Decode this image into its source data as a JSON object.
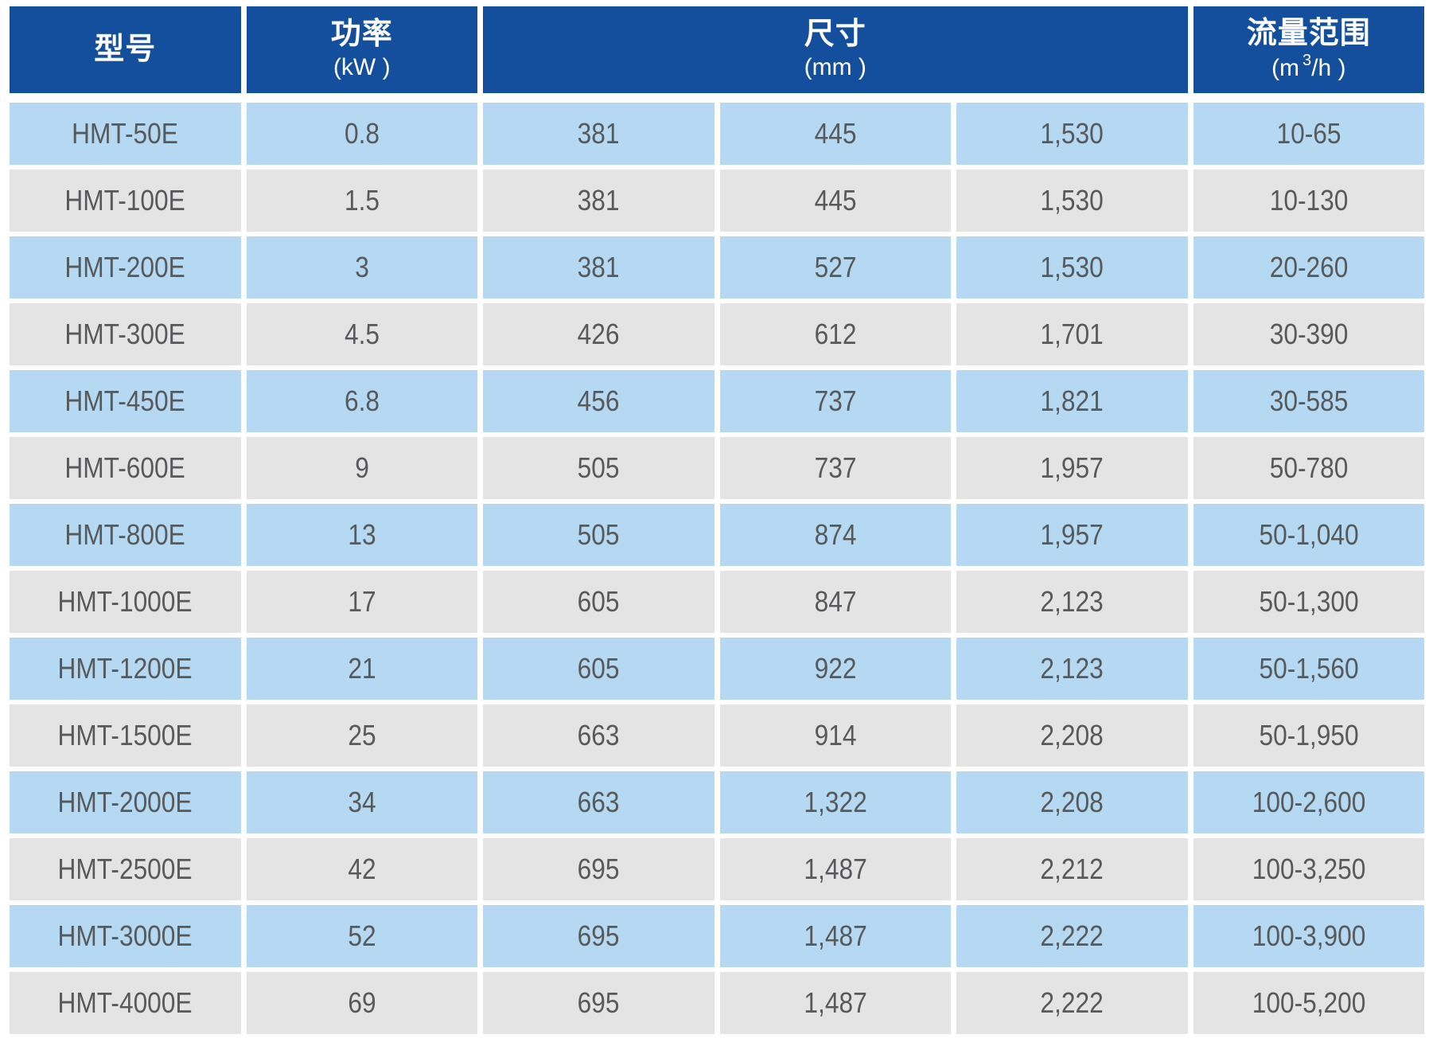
{
  "table": {
    "headers": {
      "model": "型号",
      "power_line1": "功率",
      "power_line2": "(kW )",
      "dims_line1": "尺寸",
      "dims_line2": "(mm )",
      "flow_line1": "流量范围",
      "flow_line2_prefix": "(m",
      "flow_line2_sup": "3",
      "flow_line2_suffix": "/h )"
    },
    "rows": [
      {
        "model": "HMT-50E",
        "power": "0.8",
        "dim1": "381",
        "dim2": "445",
        "dim3": "1,530",
        "flow": "10-65"
      },
      {
        "model": "HMT-100E",
        "power": "1.5",
        "dim1": "381",
        "dim2": "445",
        "dim3": "1,530",
        "flow": "10-130"
      },
      {
        "model": "HMT-200E",
        "power": "3",
        "dim1": "381",
        "dim2": "527",
        "dim3": "1,530",
        "flow": "20-260"
      },
      {
        "model": "HMT-300E",
        "power": "4.5",
        "dim1": "426",
        "dim2": "612",
        "dim3": "1,701",
        "flow": "30-390"
      },
      {
        "model": "HMT-450E",
        "power": "6.8",
        "dim1": "456",
        "dim2": "737",
        "dim3": "1,821",
        "flow": "30-585"
      },
      {
        "model": "HMT-600E",
        "power": "9",
        "dim1": "505",
        "dim2": "737",
        "dim3": "1,957",
        "flow": "50-780"
      },
      {
        "model": "HMT-800E",
        "power": "13",
        "dim1": "505",
        "dim2": "874",
        "dim3": "1,957",
        "flow": "50-1,040"
      },
      {
        "model": "HMT-1000E",
        "power": "17",
        "dim1": "605",
        "dim2": "847",
        "dim3": "2,123",
        "flow": "50-1,300"
      },
      {
        "model": "HMT-1200E",
        "power": "21",
        "dim1": "605",
        "dim2": "922",
        "dim3": "2,123",
        "flow": "50-1,560"
      },
      {
        "model": "HMT-1500E",
        "power": "25",
        "dim1": "663",
        "dim2": "914",
        "dim3": "2,208",
        "flow": "50-1,950"
      },
      {
        "model": "HMT-2000E",
        "power": "34",
        "dim1": "663",
        "dim2": "1,322",
        "dim3": "2,208",
        "flow": "100-2,600"
      },
      {
        "model": "HMT-2500E",
        "power": "42",
        "dim1": "695",
        "dim2": "1,487",
        "dim3": "2,212",
        "flow": "100-3,250"
      },
      {
        "model": "HMT-3000E",
        "power": "52",
        "dim1": "695",
        "dim2": "1,487",
        "dim3": "2,222",
        "flow": "100-3,900"
      },
      {
        "model": "HMT-4000E",
        "power": "69",
        "dim1": "695",
        "dim2": "1,487",
        "dim3": "2,222",
        "flow": "100-5,200"
      }
    ]
  },
  "colors": {
    "header_bg": "#134f9c",
    "row_blue": "#b5d9f2",
    "row_gray": "#e5e4e4",
    "data_text": "#58595b",
    "header_text": "#ffffff",
    "background": "#ffffff"
  }
}
